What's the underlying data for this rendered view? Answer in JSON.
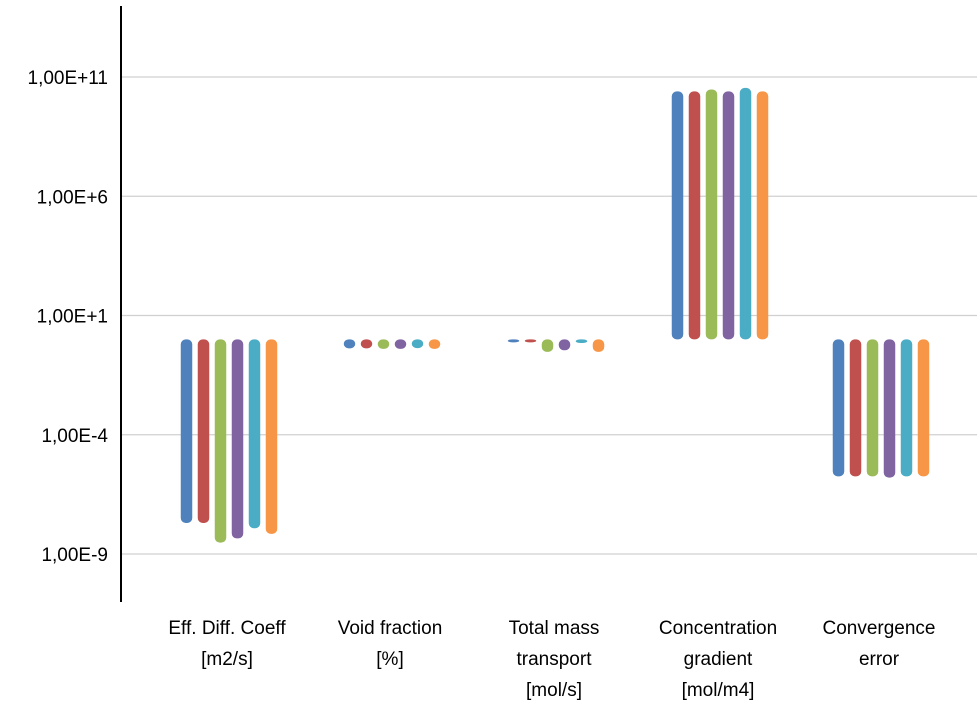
{
  "chart_data": {
    "type": "bar",
    "yscale": "log10",
    "baseline": 1,
    "ylim": [
      "1,00E-9",
      "1,00E+11"
    ],
    "y_ticks": [
      {
        "value": 1e-09,
        "label": "1,00E-9"
      },
      {
        "value": 0.0001,
        "label": "1,00E-4"
      },
      {
        "value": 10,
        "label": "1,00E+1"
      },
      {
        "value": 1000000.0,
        "label": "1,00E+6"
      },
      {
        "value": 100000000000.0,
        "label": "1,00E+11"
      }
    ],
    "grid": true,
    "legend": "none",
    "categories": [
      {
        "lines": [
          "Eff. Diff. Coeff",
          "[m2/s]"
        ]
      },
      {
        "lines": [
          "Void fraction",
          "[%]"
        ]
      },
      {
        "lines": [
          "Total mass",
          "transport",
          "[mol/s]"
        ]
      },
      {
        "lines": [
          "Concentration",
          "gradient",
          "[mol/m4]"
        ]
      },
      {
        "lines": [
          "Convergence",
          "error"
        ]
      }
    ],
    "series": [
      {
        "color": "#4f81bd",
        "values": [
          2e-08,
          0.42,
          0.95,
          25000000000.0,
          1.8e-06
        ]
      },
      {
        "color": "#c0504d",
        "values": [
          2e-08,
          0.42,
          0.95,
          25000000000.0,
          1.8e-06
        ]
      },
      {
        "color": "#9bbb59",
        "values": [
          3e-09,
          0.4,
          0.3,
          30000000000.0,
          1.8e-06
        ]
      },
      {
        "color": "#8064a2",
        "values": [
          4.5e-09,
          0.4,
          0.35,
          25000000000.0,
          1.6e-06
        ]
      },
      {
        "color": "#4bacc6",
        "values": [
          1.2e-08,
          0.43,
          0.7,
          35000000000.0,
          1.8e-06
        ]
      },
      {
        "color": "#f79646",
        "values": [
          7e-09,
          0.4,
          0.3,
          25000000000.0,
          1.8e-06
        ]
      }
    ]
  }
}
